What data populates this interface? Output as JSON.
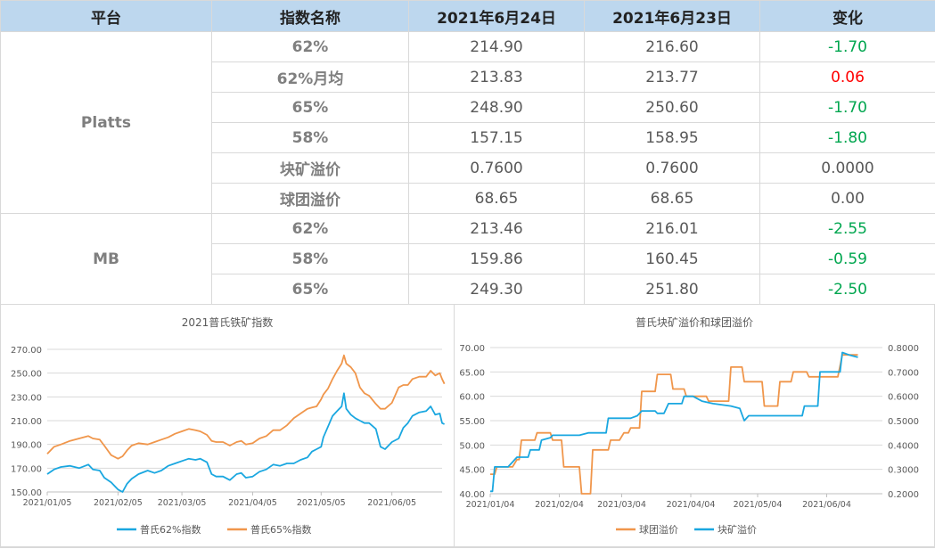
{
  "table": {
    "headers": [
      "平台",
      "指数名称",
      "2021年6月24日",
      "2021年6月23日",
      "变化"
    ],
    "groups": [
      {
        "platform": "Platts",
        "rows": [
          {
            "name": "62%",
            "d1": "214.90",
            "d2": "216.60",
            "chg": "-1.70",
            "dir": "down"
          },
          {
            "name": "62%月均",
            "d1": "213.83",
            "d2": "213.77",
            "chg": "0.06",
            "dir": "up"
          },
          {
            "name": "65%",
            "d1": "248.90",
            "d2": "250.60",
            "chg": "-1.70",
            "dir": "down"
          },
          {
            "name": "58%",
            "d1": "157.15",
            "d2": "158.95",
            "chg": "-1.80",
            "dir": "down"
          },
          {
            "name": "块矿溢价",
            "d1": "0.7600",
            "d2": "0.7600",
            "chg": "0.0000",
            "dir": "flat"
          },
          {
            "name": "球团溢价",
            "d1": "68.65",
            "d2": "68.65",
            "chg": "0.00",
            "dir": "flat"
          }
        ]
      },
      {
        "platform": "MB",
        "rows": [
          {
            "name": "62%",
            "d1": "213.46",
            "d2": "216.01",
            "chg": "-2.55",
            "dir": "down"
          },
          {
            "name": "58%",
            "d1": "159.86",
            "d2": "160.45",
            "chg": "-0.59",
            "dir": "down"
          },
          {
            "name": "65%",
            "d1": "249.30",
            "d2": "251.80",
            "chg": "-2.50",
            "dir": "down"
          }
        ]
      }
    ]
  },
  "colors": {
    "up": "#ff0000",
    "down": "#00a64f",
    "flat": "#595959",
    "header_bg": "#bdd7ee",
    "orange": "#f0964b",
    "blue": "#1aa7e0"
  },
  "chart_data": [
    {
      "type": "line",
      "title": "2021普氏铁矿指数",
      "ylim": [
        150,
        270
      ],
      "yticks": [
        "150.00",
        "170.00",
        "190.00",
        "210.00",
        "230.00",
        "250.00",
        "270.00"
      ],
      "xticks": [
        "2021/01/05",
        "2021/02/05",
        "2021/03/05",
        "2021/04/05",
        "2021/05/05",
        "2021/06/05"
      ],
      "xticks_pos": [
        0,
        31,
        59,
        90,
        120,
        151
      ],
      "x_span_days": [
        0,
        173
      ],
      "legend_position": "bottom",
      "series": [
        {
          "name": "普氏62%指数",
          "color": "#1aa7e0",
          "points": [
            [
              0,
              165
            ],
            [
              3,
              169
            ],
            [
              6,
              171
            ],
            [
              10,
              172
            ],
            [
              14,
              170
            ],
            [
              18,
              173
            ],
            [
              20,
              169
            ],
            [
              23,
              168
            ],
            [
              25,
              162
            ],
            [
              28,
              158
            ],
            [
              31,
              152
            ],
            [
              33,
              150
            ],
            [
              35,
              157
            ],
            [
              37,
              161
            ],
            [
              40,
              165
            ],
            [
              44,
              168
            ],
            [
              47,
              166
            ],
            [
              50,
              168
            ],
            [
              53,
              172
            ],
            [
              56,
              174
            ],
            [
              59,
              176
            ],
            [
              62,
              178
            ],
            [
              65,
              177
            ],
            [
              67,
              178
            ],
            [
              70,
              175
            ],
            [
              72,
              165
            ],
            [
              74,
              163
            ],
            [
              77,
              163
            ],
            [
              80,
              160
            ],
            [
              83,
              165
            ],
            [
              85,
              166
            ],
            [
              87,
              162
            ],
            [
              90,
              163
            ],
            [
              93,
              167
            ],
            [
              96,
              169
            ],
            [
              99,
              173
            ],
            [
              102,
              172
            ],
            [
              105,
              174
            ],
            [
              108,
              174
            ],
            [
              111,
              177
            ],
            [
              114,
              179
            ],
            [
              116,
              184
            ],
            [
              118,
              186
            ],
            [
              120,
              188
            ],
            [
              121,
              196
            ],
            [
              123,
              205
            ],
            [
              125,
              214
            ],
            [
              127,
              218
            ],
            [
              129,
              222
            ],
            [
              130,
              233
            ],
            [
              131,
              220
            ],
            [
              133,
              215
            ],
            [
              135,
              212
            ],
            [
              137,
              210
            ],
            [
              139,
              208
            ],
            [
              141,
              208
            ],
            [
              144,
              203
            ],
            [
              146,
              188
            ],
            [
              148,
              186
            ],
            [
              151,
              192
            ],
            [
              154,
              195
            ],
            [
              156,
              204
            ],
            [
              158,
              208
            ],
            [
              160,
              214
            ],
            [
              163,
              217
            ],
            [
              166,
              218
            ],
            [
              168,
              222
            ],
            [
              170,
              215
            ],
            [
              172,
              216
            ],
            [
              173,
              208
            ],
            [
              174,
              207
            ]
          ]
        },
        {
          "name": "普氏65%指数",
          "color": "#f0964b",
          "points": [
            [
              0,
              182
            ],
            [
              3,
              188
            ],
            [
              6,
              190
            ],
            [
              10,
              193
            ],
            [
              14,
              195
            ],
            [
              18,
              197
            ],
            [
              20,
              195
            ],
            [
              23,
              194
            ],
            [
              25,
              189
            ],
            [
              28,
              181
            ],
            [
              31,
              178
            ],
            [
              33,
              180
            ],
            [
              35,
              185
            ],
            [
              37,
              189
            ],
            [
              40,
              191
            ],
            [
              44,
              190
            ],
            [
              47,
              192
            ],
            [
              50,
              194
            ],
            [
              53,
              196
            ],
            [
              56,
              199
            ],
            [
              59,
              201
            ],
            [
              62,
              203
            ],
            [
              65,
              202
            ],
            [
              67,
              201
            ],
            [
              70,
              198
            ],
            [
              72,
              193
            ],
            [
              74,
              192
            ],
            [
              77,
              192
            ],
            [
              80,
              189
            ],
            [
              83,
              192
            ],
            [
              85,
              193
            ],
            [
              87,
              190
            ],
            [
              90,
              191
            ],
            [
              93,
              195
            ],
            [
              96,
              197
            ],
            [
              99,
              202
            ],
            [
              102,
              202
            ],
            [
              105,
              206
            ],
            [
              108,
              212
            ],
            [
              111,
              216
            ],
            [
              114,
              220
            ],
            [
              116,
              221
            ],
            [
              118,
              222
            ],
            [
              120,
              228
            ],
            [
              121,
              232
            ],
            [
              123,
              237
            ],
            [
              125,
              245
            ],
            [
              127,
              252
            ],
            [
              129,
              258
            ],
            [
              130,
              265
            ],
            [
              131,
              258
            ],
            [
              133,
              255
            ],
            [
              135,
              250
            ],
            [
              137,
              238
            ],
            [
              139,
              233
            ],
            [
              141,
              231
            ],
            [
              144,
              224
            ],
            [
              146,
              220
            ],
            [
              148,
              220
            ],
            [
              151,
              225
            ],
            [
              154,
              238
            ],
            [
              156,
              240
            ],
            [
              158,
              240
            ],
            [
              160,
              245
            ],
            [
              163,
              247
            ],
            [
              166,
              247
            ],
            [
              168,
              252
            ],
            [
              170,
              248
            ],
            [
              172,
              250
            ],
            [
              173,
              245
            ],
            [
              174,
              241
            ]
          ]
        }
      ]
    },
    {
      "type": "line",
      "title": "普氏块矿溢价和球团溢价",
      "ylim": [
        40,
        70
      ],
      "yticks": [
        "40.00",
        "45.00",
        "50.00",
        "55.00",
        "60.00",
        "65.00",
        "70.00"
      ],
      "ylim_right": [
        0.2,
        0.8
      ],
      "yticks_right": [
        "0.2000",
        "0.3000",
        "0.4000",
        "0.5000",
        "0.6000",
        "0.7000",
        "0.8000"
      ],
      "xticks": [
        "2021/01/04",
        "2021/02/04",
        "2021/03/04",
        "2021/04/04",
        "2021/05/04",
        "2021/06/04"
      ],
      "xticks_pos": [
        0,
        31,
        59,
        90,
        120,
        151
      ],
      "x_span_days": [
        0,
        176
      ],
      "legend_position": "bottom",
      "series": [
        {
          "name": "球团溢价",
          "axis": "left",
          "color": "#f0964b",
          "points": [
            [
              0,
              44
            ],
            [
              2,
              44
            ],
            [
              3,
              45.5
            ],
            [
              10,
              45.5
            ],
            [
              12,
              47
            ],
            [
              13,
              47
            ],
            [
              14,
              51
            ],
            [
              20,
              51
            ],
            [
              21,
              52.5
            ],
            [
              27,
              52.5
            ],
            [
              28,
              51
            ],
            [
              32,
              51
            ],
            [
              33,
              45.5
            ],
            [
              40,
              45.5
            ],
            [
              41,
              40
            ],
            [
              45,
              40
            ],
            [
              46,
              49
            ],
            [
              53,
              49
            ],
            [
              54,
              51
            ],
            [
              58,
              51
            ],
            [
              60,
              52.5
            ],
            [
              62,
              52.5
            ],
            [
              63,
              53.5
            ],
            [
              67,
              53.5
            ],
            [
              68,
              61
            ],
            [
              74,
              61
            ],
            [
              75,
              64.5
            ],
            [
              81,
              64.5
            ],
            [
              82,
              61.5
            ],
            [
              87,
              61.5
            ],
            [
              88,
              60
            ],
            [
              97,
              60
            ],
            [
              98,
              59
            ],
            [
              107,
              59
            ],
            [
              108,
              66
            ],
            [
              113,
              66
            ],
            [
              114,
              63
            ],
            [
              122,
              63
            ],
            [
              123,
              58
            ],
            [
              129,
              58
            ],
            [
              130,
              63
            ],
            [
              135,
              63
            ],
            [
              136,
              65
            ],
            [
              142,
              65
            ],
            [
              143,
              64
            ],
            [
              156,
              64
            ],
            [
              158,
              68.5
            ],
            [
              165,
              68.5
            ]
          ]
        },
        {
          "name": "块矿溢价",
          "axis": "right",
          "color": "#1aa7e0",
          "points": [
            [
              0,
              0.21
            ],
            [
              1,
              0.21
            ],
            [
              2,
              0.31
            ],
            [
              8,
              0.31
            ],
            [
              10,
              0.33
            ],
            [
              12,
              0.35
            ],
            [
              17,
              0.35
            ],
            [
              18,
              0.38
            ],
            [
              22,
              0.38
            ],
            [
              23,
              0.42
            ],
            [
              27,
              0.43
            ],
            [
              28,
              0.44
            ],
            [
              36,
              0.44
            ],
            [
              40,
              0.44
            ],
            [
              44,
              0.45
            ],
            [
              52,
              0.45
            ],
            [
              53,
              0.51
            ],
            [
              63,
              0.51
            ],
            [
              66,
              0.52
            ],
            [
              68,
              0.54
            ],
            [
              74,
              0.54
            ],
            [
              75,
              0.53
            ],
            [
              78,
              0.53
            ],
            [
              80,
              0.57
            ],
            [
              86,
              0.57
            ],
            [
              87,
              0.6
            ],
            [
              91,
              0.6
            ],
            [
              95,
              0.58
            ],
            [
              100,
              0.57
            ],
            [
              108,
              0.56
            ],
            [
              112,
              0.55
            ],
            [
              114,
              0.5
            ],
            [
              116,
              0.52
            ],
            [
              124,
              0.52
            ],
            [
              136,
              0.52
            ],
            [
              140,
              0.52
            ],
            [
              141,
              0.56
            ],
            [
              147,
              0.56
            ],
            [
              148,
              0.7
            ],
            [
              157,
              0.7
            ],
            [
              158,
              0.78
            ],
            [
              161,
              0.77
            ],
            [
              165,
              0.76
            ]
          ]
        }
      ]
    }
  ]
}
